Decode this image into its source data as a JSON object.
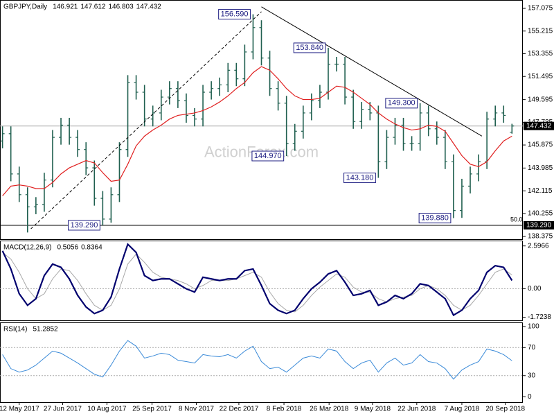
{
  "chart_data": [
    {
      "type": "ohlc",
      "title": "GBPJPY,Daily",
      "watermark": "ActionForex.com",
      "color": "#1f5f4f",
      "xlim": [
        -0.3,
        62.3
      ],
      "ylim": [
        138.15,
        157.76
      ],
      "yticks": [
        157.075,
        155.215,
        153.355,
        151.495,
        149.595,
        147.735,
        145.875,
        143.985,
        142.115,
        140.255,
        138.375
      ],
      "open": [
        146.2,
        146.8,
        143.5,
        141.8,
        140.8,
        141.0,
        143.0,
        146.5,
        147.5,
        146.5,
        145.5,
        144.0,
        141.5,
        139.8,
        141.8,
        145.5,
        151.0,
        150.2,
        148.0,
        148.5,
        149.8,
        150.5,
        149.5,
        148.3,
        148.0,
        150.2,
        150.5,
        150.8,
        152.0,
        151.3,
        153.5,
        155.5,
        153.0,
        150.5,
        149.3,
        146.0,
        147.0,
        148.5,
        149.5,
        150.2,
        152.5,
        152.5,
        149.8,
        147.8,
        148.8,
        148.5,
        144.5,
        146.5,
        147.5,
        146.0,
        146.0,
        148.5,
        147.2,
        146.5,
        144.5,
        140.5,
        142.5,
        143.5,
        144.5,
        148.0,
        148.5,
        146.921
      ],
      "high": [
        147.4,
        147.4,
        144.1,
        142.4,
        141.6,
        143.6,
        147.1,
        148.1,
        148.1,
        147.1,
        146.1,
        144.6,
        142.1,
        142.4,
        146.1,
        151.6,
        151.6,
        150.8,
        149.1,
        150.4,
        151.1,
        151.1,
        150.1,
        148.9,
        150.8,
        151.1,
        151.4,
        152.6,
        152.6,
        154.1,
        156.59,
        156.1,
        153.6,
        151.1,
        149.9,
        147.6,
        149.1,
        150.1,
        150.8,
        153.84,
        153.1,
        153.1,
        150.4,
        149.4,
        149.4,
        149.1,
        147.1,
        148.1,
        148.1,
        146.6,
        149.3,
        149.1,
        147.8,
        147.1,
        145.1,
        143.1,
        144.1,
        145.1,
        148.6,
        149.1,
        149.1,
        147.612
      ],
      "low": [
        145.6,
        142.9,
        141.2,
        138.7,
        140.2,
        140.4,
        142.4,
        145.9,
        145.9,
        144.9,
        143.4,
        140.9,
        139.29,
        139.5,
        141.2,
        144.9,
        149.6,
        147.4,
        147.4,
        147.9,
        149.2,
        148.9,
        147.7,
        147.4,
        147.4,
        149.6,
        149.9,
        150.2,
        150.7,
        150.7,
        152.9,
        152.4,
        149.9,
        148.7,
        144.97,
        145.4,
        146.4,
        147.9,
        148.9,
        149.6,
        151.9,
        149.2,
        147.2,
        147.2,
        147.9,
        143.18,
        143.9,
        145.9,
        145.4,
        145.4,
        145.4,
        146.6,
        145.9,
        143.9,
        139.88,
        139.9,
        141.9,
        142.9,
        143.9,
        147.4,
        147.7,
        146.803
      ],
      "close": [
        146.8,
        143.5,
        141.8,
        140.8,
        141.0,
        143.0,
        146.5,
        147.5,
        146.5,
        145.5,
        144.0,
        141.5,
        139.8,
        141.8,
        145.5,
        151.0,
        150.2,
        148.0,
        148.5,
        149.8,
        150.5,
        149.5,
        148.3,
        148.0,
        150.2,
        150.5,
        150.8,
        152.0,
        151.3,
        153.5,
        155.5,
        153.0,
        150.5,
        149.3,
        146.0,
        147.0,
        148.5,
        149.5,
        150.2,
        152.5,
        152.5,
        149.8,
        147.8,
        148.8,
        148.5,
        144.5,
        146.5,
        147.5,
        146.0,
        146.0,
        148.5,
        147.2,
        146.5,
        144.5,
        140.5,
        142.5,
        143.5,
        144.5,
        148.0,
        148.5,
        148.3,
        147.432
      ],
      "overlay": {
        "color": "#e02020",
        "values": [
          141.7,
          142.5,
          142.6,
          142.5,
          142.3,
          142.3,
          142.8,
          143.5,
          144.0,
          144.3,
          144.6,
          144.4,
          143.6,
          142.9,
          143.0,
          144.3,
          145.8,
          146.6,
          147.1,
          147.5,
          148.0,
          148.3,
          148.4,
          148.5,
          148.7,
          149.0,
          149.4,
          149.9,
          150.5,
          151.0,
          151.8,
          152.3,
          152.0,
          151.3,
          150.5,
          149.9,
          149.6,
          149.6,
          149.7,
          150.2,
          150.7,
          150.6,
          150.2,
          149.7,
          149.2,
          148.5,
          148.0,
          147.6,
          147.3,
          147.1,
          147.2,
          147.5,
          147.4,
          147.0,
          146.0,
          145.0,
          144.3,
          144.1,
          144.5,
          145.4,
          146.2,
          146.6
        ]
      },
      "annotations": [
        {
          "x": 30,
          "value": 156.59,
          "label": "156.590"
        },
        {
          "x": 39,
          "value": 153.84,
          "label": "153.840"
        },
        {
          "x": 34,
          "value": 144.97,
          "label": "144.970"
        },
        {
          "x": 50,
          "value": 149.3,
          "label": "149.300"
        },
        {
          "x": 45,
          "value": 143.18,
          "label": "143.180"
        },
        {
          "x": 54,
          "value": 139.88,
          "label": "139.880"
        },
        {
          "x": 12,
          "value": 139.29,
          "label": "139.290"
        }
      ],
      "hline": {
        "value": 139.29,
        "label": "139.290",
        "color": "#000000"
      },
      "fib_label": {
        "value": 50,
        "label": "50.0"
      },
      "trendlines": [
        {
          "x": [
            3.4,
            31
          ],
          "y": [
            139.0,
            156.8
          ],
          "dashed": true
        },
        {
          "x": [
            31,
            57.4
          ],
          "y": [
            157.2,
            146.6
          ],
          "dashed": false
        }
      ]
    },
    {
      "type": "line",
      "title": "MACD(12,26,9)",
      "xlim": [
        -0.3,
        62.3
      ],
      "ylim": [
        -1.91,
        2.92
      ],
      "yticks": [
        2.5966,
        {
          "value": 0,
          "label": "0.00"
        },
        -1.7238
      ],
      "series": [
        {
          "color": "#00006e",
          "width": 2.2,
          "values": [
            2.3,
            1.2,
            -0.3,
            -1.0,
            -0.6,
            0.8,
            1.5,
            1.3,
            0.6,
            -0.4,
            -1.1,
            -1.5,
            -1.3,
            -0.5,
            1.2,
            2.7,
            2.2,
            0.8,
            0.5,
            0.6,
            0.6,
            0.3,
            0.0,
            -0.2,
            0.7,
            0.6,
            0.5,
            0.6,
            0.6,
            1.1,
            1.2,
            0.2,
            -0.9,
            -1.3,
            -1.5,
            -1.3,
            -0.6,
            0.0,
            0.4,
            0.9,
            1.1,
            0.4,
            -0.4,
            -0.3,
            -0.1,
            -1.0,
            -0.8,
            -0.4,
            -0.6,
            -0.3,
            0.3,
            0.2,
            -0.2,
            -0.6,
            -1.6,
            -1.3,
            -0.6,
            -0.1,
            1.0,
            1.4,
            1.3,
            0.5056
          ]
        },
        {
          "color": "#a8a8a8",
          "width": 1,
          "values": [
            2.2,
            1.8,
            1.0,
            0.0,
            -0.6,
            -0.3,
            0.6,
            1.2,
            1.1,
            0.5,
            -0.3,
            -1.0,
            -1.3,
            -1.0,
            0.0,
            1.5,
            2.1,
            1.6,
            1.0,
            0.7,
            0.6,
            0.5,
            0.3,
            0.0,
            0.2,
            0.5,
            0.5,
            0.5,
            0.6,
            0.8,
            1.0,
            0.7,
            -0.2,
            -0.9,
            -1.3,
            -1.4,
            -1.0,
            -0.4,
            0.1,
            0.5,
            0.9,
            0.7,
            0.1,
            -0.2,
            -0.2,
            -0.6,
            -0.8,
            -0.6,
            -0.5,
            -0.4,
            0.0,
            0.2,
            0.0,
            -0.4,
            -1.0,
            -1.3,
            -1.0,
            -0.4,
            0.3,
            1.0,
            1.2,
            0.8364
          ]
        }
      ]
    },
    {
      "type": "line",
      "title": "RSI(14)",
      "xlim": [
        -0.3,
        62.3
      ],
      "ylim": [
        -7.8,
        105.9
      ],
      "yticks": [
        100,
        70,
        30,
        0
      ],
      "levels": [
        70,
        30
      ],
      "series": [
        {
          "color": "#3a8ad8",
          "width": 1,
          "values": [
            60,
            40,
            35,
            38,
            45,
            55,
            65,
            62,
            55,
            48,
            40,
            32,
            28,
            45,
            65,
            80,
            72,
            55,
            58,
            62,
            60,
            52,
            50,
            48,
            60,
            58,
            57,
            60,
            55,
            65,
            72,
            50,
            40,
            42,
            35,
            45,
            55,
            58,
            55,
            68,
            65,
            50,
            40,
            48,
            52,
            35,
            48,
            55,
            45,
            48,
            60,
            50,
            48,
            40,
            25,
            38,
            45,
            50,
            68,
            65,
            60,
            51.2852
          ]
        }
      ],
      "xticks": [
        {
          "value": 2.0,
          "label": "12 May 2017"
        },
        {
          "value": 7.2,
          "label": "27 Jun 2017"
        },
        {
          "value": 12.5,
          "label": "10 Aug 2017"
        },
        {
          "value": 17.9,
          "label": "25 Sep 2017"
        },
        {
          "value": 23.2,
          "label": "8 Nov 2017"
        },
        {
          "value": 28.3,
          "label": "22 Dec 2017"
        },
        {
          "value": 33.7,
          "label": "8 Feb 2018"
        },
        {
          "value": 39.1,
          "label": "26 Mar 2018"
        },
        {
          "value": 44.3,
          "label": "9 May 2018"
        },
        {
          "value": 49.6,
          "label": "22 Jun 2018"
        },
        {
          "value": 55.0,
          "label": "7 Aug 2018"
        },
        {
          "value": 60.2,
          "label": "20 Sep 2018"
        }
      ]
    }
  ]
}
